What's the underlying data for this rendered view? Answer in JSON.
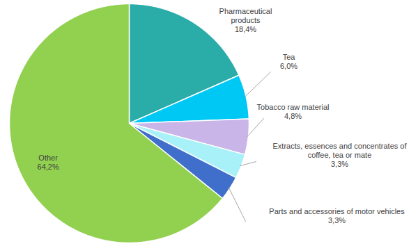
{
  "chart_data": {
    "type": "pie",
    "categories": [
      "Pharmaceutical products",
      "Tea",
      "Tobacco raw material",
      "Extracts, essences and concentrates of coffee, tea or mate",
      "Parts and accessories of motor vehicles",
      "Other"
    ],
    "values": [
      18.4,
      6.0,
      4.8,
      3.3,
      3.3,
      64.2
    ],
    "value_labels": [
      "18,4%",
      "6,0%",
      "4,8%",
      "3,3%",
      "3,3%",
      "64,2%"
    ],
    "colors": [
      "#2aaca8",
      "#00c8f5",
      "#c9b5e8",
      "#a9f1f8",
      "#3f6fcb",
      "#92d050"
    ],
    "data_labels": true
  }
}
